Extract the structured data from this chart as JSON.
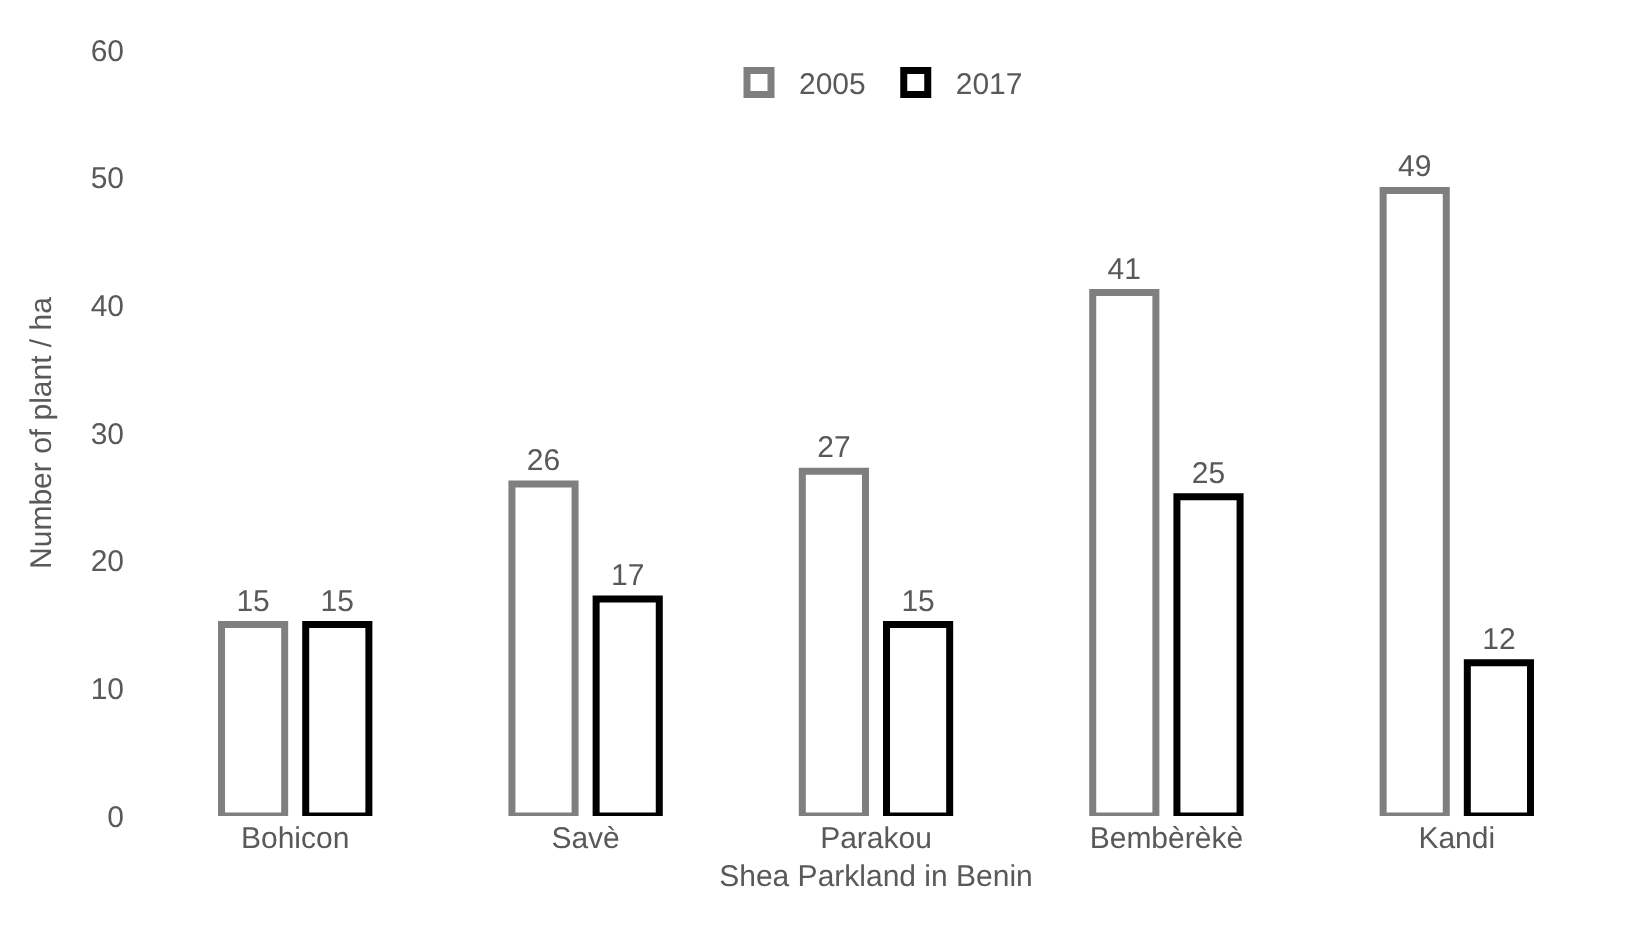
{
  "chart_data": {
    "type": "bar",
    "xlabel": "Shea Parkland in Benin",
    "ylabel": "Number of plant / ha",
    "categories": [
      "Bohicon",
      "Savè",
      "Parakou",
      "Bembèrèkè",
      "Kandi"
    ],
    "series": [
      {
        "name": "2005",
        "color": "#7f7f7f",
        "values": [
          15,
          26,
          27,
          41,
          49
        ]
      },
      {
        "name": "2017",
        "color": "#000000",
        "values": [
          15,
          17,
          15,
          25,
          12
        ]
      }
    ],
    "ylim": [
      0,
      60
    ],
    "yticks": [
      0,
      10,
      20,
      30,
      40,
      50,
      60
    ],
    "grid": false,
    "legend": "top",
    "data_labels": true
  }
}
